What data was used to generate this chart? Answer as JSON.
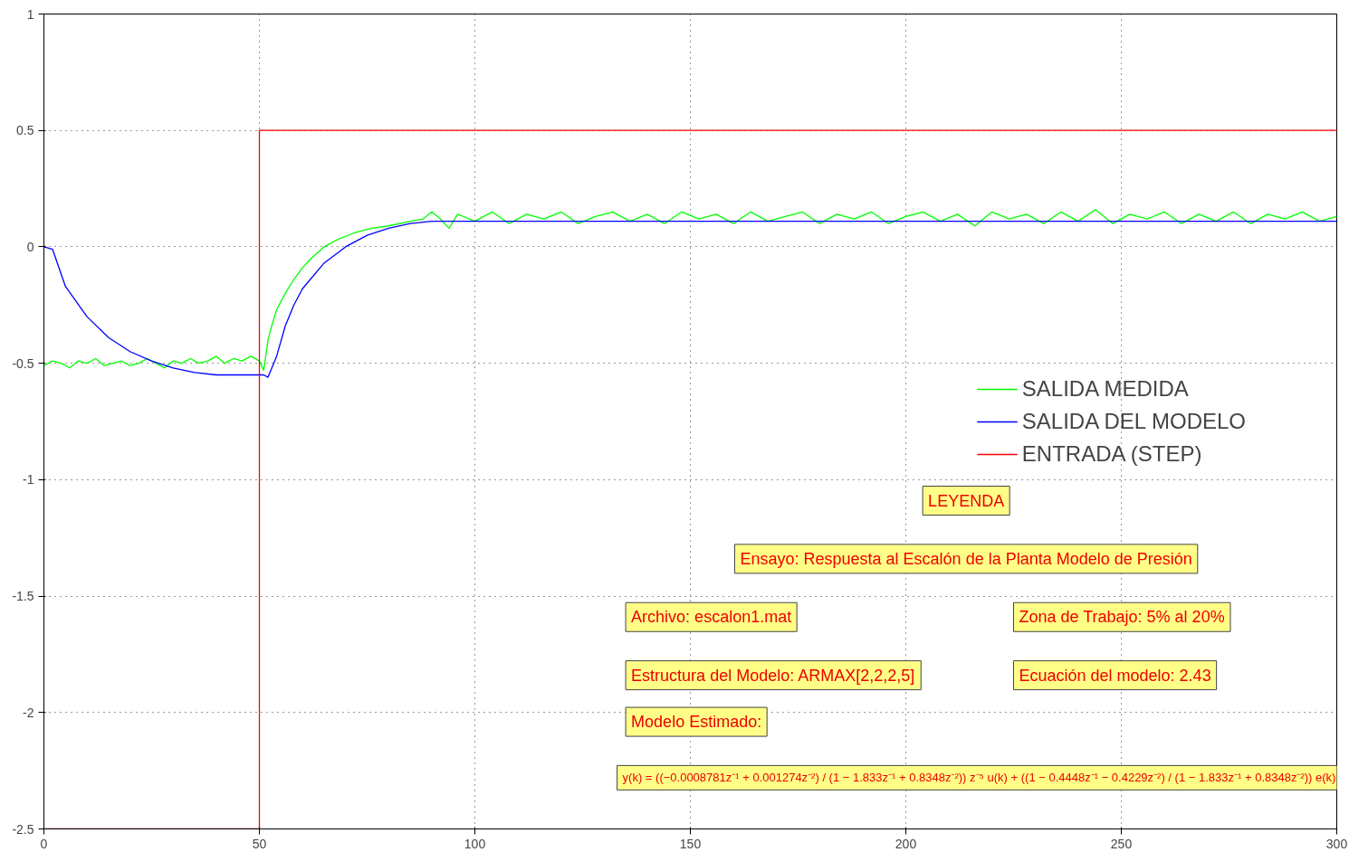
{
  "chart_data": {
    "type": "line",
    "xlim": [
      0,
      300
    ],
    "xticks": [
      0,
      50,
      100,
      150,
      200,
      250,
      300
    ],
    "ylim": [
      -2.5,
      1
    ],
    "yticks": [
      -2.5,
      -2,
      -1.5,
      -1,
      -0.5,
      0,
      0.5,
      1
    ],
    "grid": true,
    "legend": "right",
    "line_style": "solid",
    "series": [
      {
        "name": "SALIDA MEDIDA",
        "color": "#00ff00",
        "x": [
          0,
          2,
          4,
          6,
          8,
          10,
          12,
          14,
          16,
          18,
          20,
          22,
          24,
          26,
          28,
          30,
          32,
          34,
          36,
          38,
          40,
          42,
          44,
          46,
          48,
          50,
          51,
          52,
          53,
          54,
          56,
          58,
          60,
          62,
          65,
          68,
          72,
          76,
          80,
          85,
          88,
          90,
          92,
          94,
          96,
          100,
          104,
          108,
          112,
          116,
          120,
          124,
          128,
          132,
          136,
          140,
          144,
          148,
          152,
          156,
          160,
          164,
          168,
          172,
          176,
          180,
          184,
          188,
          192,
          196,
          200,
          204,
          208,
          212,
          216,
          220,
          224,
          228,
          232,
          236,
          240,
          244,
          248,
          252,
          256,
          260,
          264,
          268,
          272,
          276,
          280,
          284,
          288,
          292,
          296,
          300
        ],
        "values": [
          -0.51,
          -0.49,
          -0.5,
          -0.52,
          -0.49,
          -0.5,
          -0.48,
          -0.51,
          -0.5,
          -0.49,
          -0.51,
          -0.5,
          -0.48,
          -0.5,
          -0.52,
          -0.49,
          -0.5,
          -0.48,
          -0.5,
          -0.49,
          -0.47,
          -0.5,
          -0.48,
          -0.49,
          -0.47,
          -0.49,
          -0.53,
          -0.4,
          -0.33,
          -0.27,
          -0.2,
          -0.14,
          -0.09,
          -0.05,
          0.0,
          0.03,
          0.06,
          0.08,
          0.09,
          0.11,
          0.12,
          0.15,
          0.12,
          0.08,
          0.14,
          0.11,
          0.15,
          0.1,
          0.14,
          0.12,
          0.15,
          0.1,
          0.13,
          0.15,
          0.11,
          0.14,
          0.1,
          0.15,
          0.12,
          0.14,
          0.1,
          0.15,
          0.11,
          0.13,
          0.15,
          0.1,
          0.14,
          0.12,
          0.15,
          0.1,
          0.13,
          0.15,
          0.11,
          0.14,
          0.09,
          0.15,
          0.12,
          0.14,
          0.1,
          0.15,
          0.11,
          0.16,
          0.1,
          0.14,
          0.12,
          0.15,
          0.1,
          0.14,
          0.11,
          0.15,
          0.1,
          0.14,
          0.12,
          0.15,
          0.11,
          0.13
        ]
      },
      {
        "name": "SALIDA DEL MODELO",
        "color": "#0000ff",
        "x": [
          0,
          2,
          5,
          10,
          15,
          20,
          25,
          30,
          35,
          40,
          51,
          52,
          54,
          56,
          58,
          60,
          65,
          70,
          75,
          80,
          85,
          90,
          300
        ],
        "values": [
          0,
          -0.01,
          -0.17,
          -0.3,
          -0.39,
          -0.45,
          -0.49,
          -0.52,
          -0.54,
          -0.55,
          -0.55,
          -0.56,
          -0.47,
          -0.34,
          -0.25,
          -0.18,
          -0.07,
          0.0,
          0.05,
          0.08,
          0.1,
          0.11,
          0.11
        ]
      },
      {
        "name": "ENTRADA (STEP)",
        "color": "#ff0000",
        "x": [
          0,
          50,
          50,
          300
        ],
        "values": [
          -2.5,
          -2.5,
          0.5,
          0.5
        ]
      }
    ],
    "annotations": [
      "LEYENDA",
      "Ensayo: Respuesta al Escalón de la Planta Modelo de Presión",
      "Archivo: escalon1.mat",
      "Zona de Trabajo: 5% al 20%",
      "Estructura del Modelo: ARMAX[2,2,2,5]",
      "Ecuación del modelo: 2.43",
      "Modelo Estimado:",
      "y(k) = ((−0.0008781z⁻¹ + 0.001274z⁻²) / (1 − 1.833z⁻¹ + 0.8348z⁻²)) z⁻⁵ u(k) + ((1 − 0.4448z⁻¹ − 0.4229z⁻²) / (1 − 1.833z⁻¹ + 0.8348z⁻²)) e(k)"
    ]
  }
}
